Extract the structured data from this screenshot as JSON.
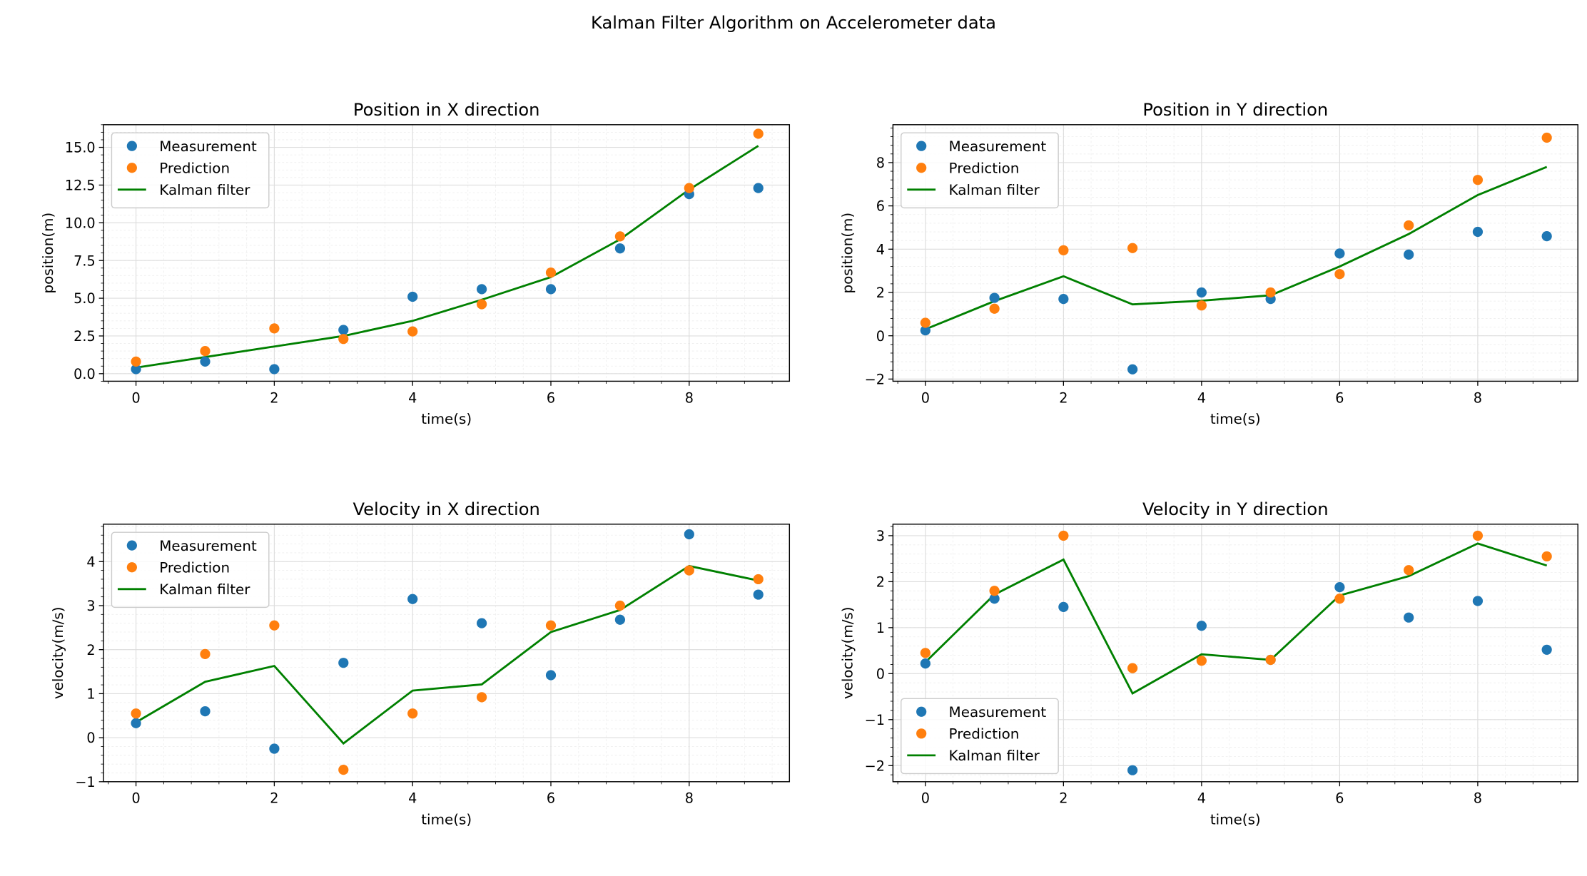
{
  "figure": {
    "suptitle": "Kalman Filter Algorithm on Accelerometer data"
  },
  "colors": {
    "measurement": "#1f77b4",
    "prediction": "#ff7f0e",
    "kalman": "#008000"
  },
  "chart_data": [
    {
      "type": "scatter",
      "title": "Position in X direction",
      "xlabel": "time(s)",
      "ylabel": "position(m)",
      "xlim": [
        -0.47,
        9.45
      ],
      "ylim": [
        -0.5,
        16.5
      ],
      "xticks": [
        0,
        2,
        4,
        6,
        8
      ],
      "yticks": [
        0.0,
        2.5,
        5.0,
        7.5,
        10.0,
        12.5,
        15.0
      ],
      "ytick_labels": [
        "0.0",
        "2.5",
        "5.0",
        "7.5",
        "10.0",
        "12.5",
        "15.0"
      ],
      "grid": true,
      "legend_position": "upper-left",
      "x": [
        0,
        1,
        2,
        3,
        4,
        5,
        6,
        7,
        8,
        9
      ],
      "series": [
        {
          "name": "Measurement",
          "kind": "scatter",
          "values": [
            0.3,
            0.8,
            0.3,
            2.9,
            5.1,
            5.6,
            5.6,
            8.3,
            11.9,
            12.3
          ]
        },
        {
          "name": "Prediction",
          "kind": "scatter",
          "values": [
            0.8,
            1.5,
            3.0,
            2.3,
            2.8,
            4.6,
            6.7,
            9.1,
            12.3,
            15.9
          ]
        },
        {
          "name": "Kalman filter",
          "kind": "line",
          "values": [
            0.4,
            1.1,
            1.8,
            2.5,
            3.5,
            4.9,
            6.4,
            8.9,
            12.2,
            15.1
          ]
        }
      ]
    },
    {
      "type": "scatter",
      "title": "Position in Y direction",
      "xlabel": "time(s)",
      "ylabel": "position(m)",
      "xlim": [
        -0.47,
        9.45
      ],
      "ylim": [
        -2.1,
        9.75
      ],
      "xticks": [
        0,
        2,
        4,
        6,
        8
      ],
      "yticks": [
        -2,
        0,
        2,
        4,
        6,
        8
      ],
      "ytick_labels": [
        "−2",
        "0",
        "2",
        "4",
        "6",
        "8"
      ],
      "grid": true,
      "legend_position": "upper-left",
      "x": [
        0,
        1,
        2,
        3,
        4,
        5,
        6,
        7,
        8,
        9
      ],
      "series": [
        {
          "name": "Measurement",
          "kind": "scatter",
          "values": [
            0.25,
            1.75,
            1.7,
            -1.55,
            2.0,
            1.7,
            3.8,
            3.75,
            4.8,
            4.6
          ]
        },
        {
          "name": "Prediction",
          "kind": "scatter",
          "values": [
            0.6,
            1.25,
            3.95,
            4.05,
            1.4,
            2.0,
            2.85,
            5.1,
            7.2,
            9.15
          ]
        },
        {
          "name": "Kalman filter",
          "kind": "line",
          "values": [
            0.3,
            1.6,
            2.75,
            1.45,
            1.62,
            1.87,
            3.2,
            4.7,
            6.5,
            7.8
          ]
        }
      ]
    },
    {
      "type": "scatter",
      "title": "Velocity in X direction",
      "xlabel": "time(s)",
      "ylabel": "velocity(m/s)",
      "xlim": [
        -0.47,
        9.45
      ],
      "ylim": [
        -1.0,
        4.85
      ],
      "xticks": [
        0,
        2,
        4,
        6,
        8
      ],
      "yticks": [
        -1,
        0,
        1,
        2,
        3,
        4
      ],
      "ytick_labels": [
        "−1",
        "0",
        "1",
        "2",
        "3",
        "4"
      ],
      "grid": true,
      "legend_position": "upper-left",
      "x": [
        0,
        1,
        2,
        3,
        4,
        5,
        6,
        7,
        8,
        9
      ],
      "series": [
        {
          "name": "Measurement",
          "kind": "scatter",
          "values": [
            0.33,
            0.6,
            -0.25,
            1.7,
            3.15,
            2.6,
            1.42,
            2.68,
            4.62,
            3.25
          ]
        },
        {
          "name": "Prediction",
          "kind": "scatter",
          "values": [
            0.55,
            1.9,
            2.55,
            -0.73,
            0.55,
            0.92,
            2.55,
            3.0,
            3.8,
            3.6
          ]
        },
        {
          "name": "Kalman filter",
          "kind": "line",
          "values": [
            0.35,
            1.27,
            1.63,
            -0.13,
            1.07,
            1.21,
            2.4,
            2.9,
            3.9,
            3.57
          ]
        }
      ]
    },
    {
      "type": "scatter",
      "title": "Velocity in Y direction",
      "xlabel": "time(s)",
      "ylabel": "velocity(m/s)",
      "xlim": [
        -0.47,
        9.45
      ],
      "ylim": [
        -2.35,
        3.25
      ],
      "xticks": [
        0,
        2,
        4,
        6,
        8
      ],
      "yticks": [
        -2,
        -1,
        0,
        1,
        2,
        3
      ],
      "ytick_labels": [
        "−2",
        "−1",
        "0",
        "1",
        "2",
        "3"
      ],
      "grid": true,
      "legend_position": "lower-left",
      "x": [
        0,
        1,
        2,
        3,
        4,
        5,
        6,
        7,
        8,
        9
      ],
      "series": [
        {
          "name": "Measurement",
          "kind": "scatter",
          "values": [
            0.22,
            1.63,
            1.45,
            -2.1,
            1.04,
            0.3,
            1.88,
            1.22,
            1.58,
            0.52
          ]
        },
        {
          "name": "Prediction",
          "kind": "scatter",
          "values": [
            0.45,
            1.8,
            3.0,
            0.12,
            0.28,
            0.3,
            1.63,
            2.25,
            3.0,
            2.55
          ]
        },
        {
          "name": "Kalman filter",
          "kind": "line",
          "values": [
            0.25,
            1.72,
            2.48,
            -0.43,
            0.42,
            0.3,
            1.7,
            2.12,
            2.83,
            2.35
          ]
        }
      ]
    }
  ]
}
